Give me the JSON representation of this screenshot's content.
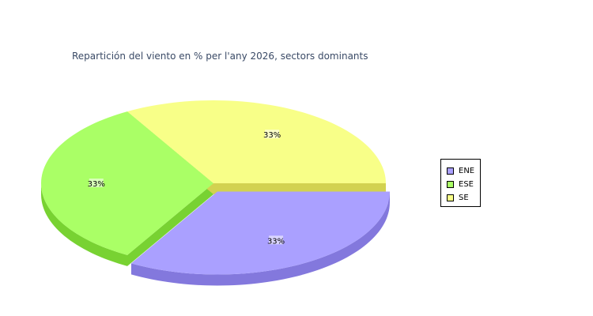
{
  "chart_data": {
    "type": "pie",
    "title": "Repartición del viento en % per l'any 2026, sectors dominants",
    "categories": [
      "ENE",
      "ESE",
      "SE"
    ],
    "values": [
      33,
      33,
      33
    ],
    "labels": [
      "33%",
      "33%",
      "33%"
    ],
    "exploded": [
      "ENE"
    ],
    "three_d": true,
    "legend_position": "right",
    "colors": {
      "ENE": "#aaa0ff",
      "ESE": "#aaff66",
      "SE": "#f8ff88"
    },
    "side_colors": {
      "ENE": "#8378dd",
      "ESE": "#78d232",
      "SE": "#d2d250"
    }
  }
}
